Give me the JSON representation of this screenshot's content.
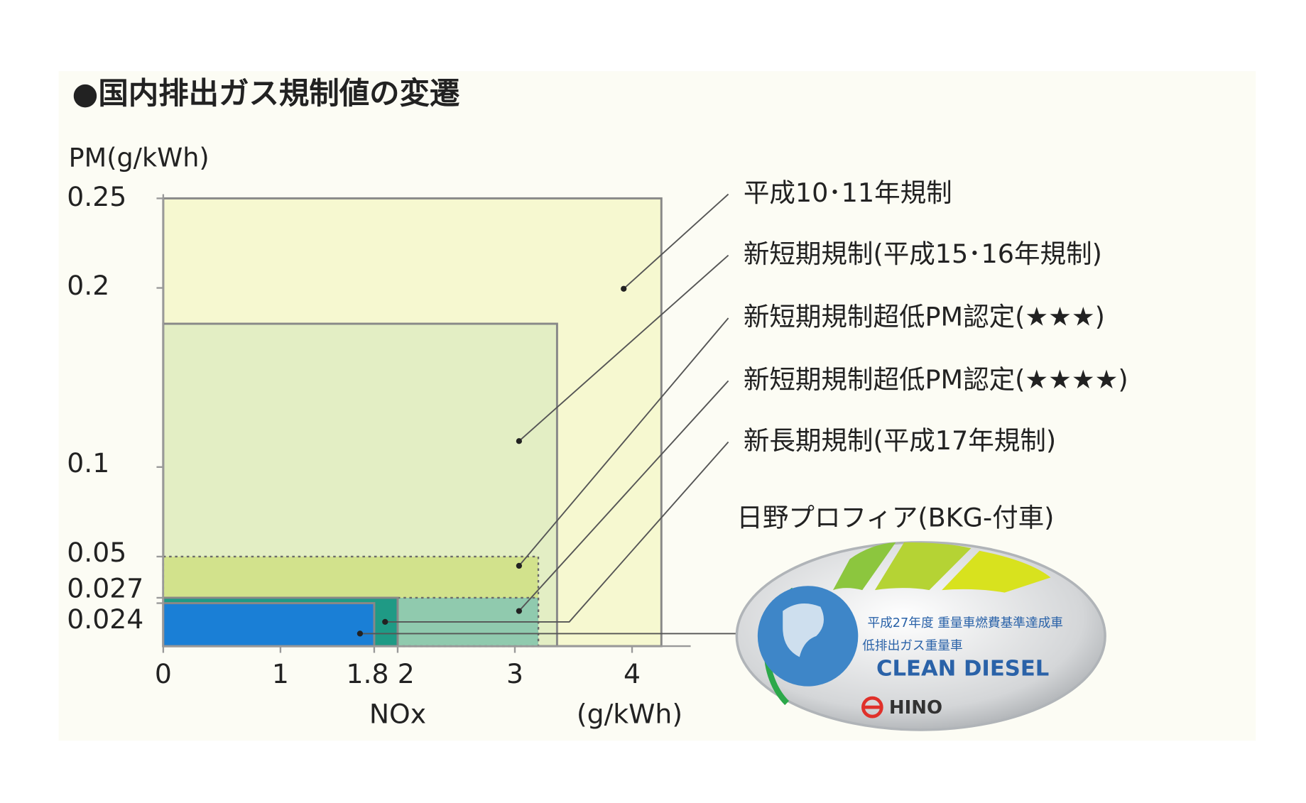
{
  "chart_data": {
    "type": "nested-rect",
    "title": "●国内排出ガス規制値の変遷",
    "y_label": "PM(g/kWh)",
    "x_label": "NOx",
    "x_unit": "(g/kWh)",
    "xlim": [
      0,
      4.5
    ],
    "ylim": [
      0,
      0.25
    ],
    "xticks": [
      0,
      1,
      1.8,
      2,
      3,
      4
    ],
    "yticks": [
      0.024,
      0.027,
      0.05,
      0.1,
      0.2,
      0.25
    ],
    "series": [
      {
        "name": "平成10･11年規制",
        "color": "#f6f8d0",
        "x": 4.25,
        "y": 0.25,
        "dotted": false
      },
      {
        "name": "新短期規制(平成15･16年規制)",
        "color": "#e3eec4",
        "x": 3.36,
        "y": 0.18,
        "dotted": false
      },
      {
        "name": "新短期規制超低PM認定(★★★)",
        "color": "#d2e28c",
        "x": 3.2,
        "y": 0.05,
        "dotted": true
      },
      {
        "name": "新短期規制超低PM認定(★★★★)",
        "color": "#90caae",
        "x": 3.2,
        "y": 0.027,
        "dotted": true
      },
      {
        "name": "新長期規制(平成17年規制)",
        "color": "#1f9a85",
        "x": 2,
        "y": 0.027,
        "dotted": false
      },
      {
        "name": "日野プロフィア(BKG-付車)",
        "color": "#1a7fd6",
        "x": 1.8,
        "y": 0.024,
        "dotted": false
      }
    ],
    "badge": {
      "line1": "平成27年度 重量車燃費基準達成車",
      "line2": "低排出ガス重量車",
      "brand": "CLEAN DIESEL",
      "maker": "HINO"
    }
  }
}
